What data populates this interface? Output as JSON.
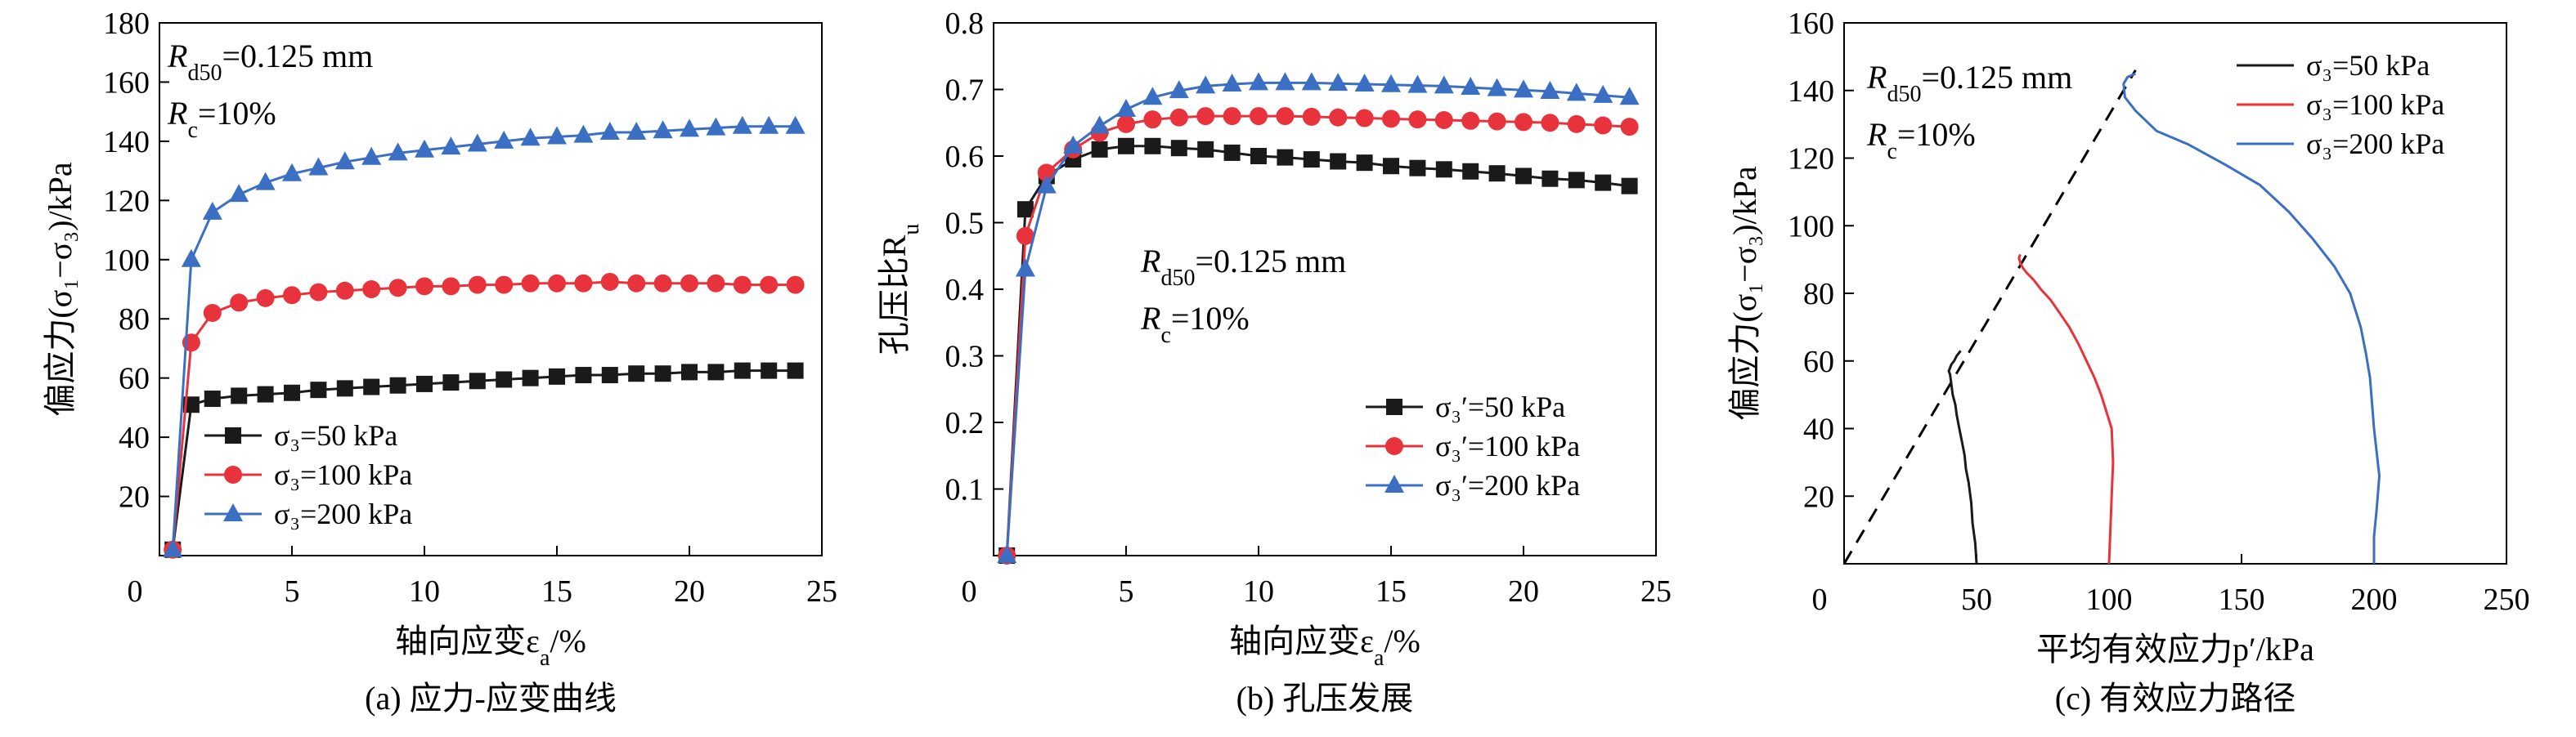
{
  "colors": {
    "black": "#1a1a1a",
    "red": "#e8323c",
    "blue": "#3b6fc4"
  },
  "chart_data": [
    {
      "type": "line",
      "id": "a",
      "caption": "(a) 应力-应变曲线",
      "xlabel": "轴向应变ε",
      "xlabel_sub": "a",
      "xlabel_unit": "/%",
      "ylabel": "偏应力(σ₁−σ₃)/kPa",
      "xlim": [
        0,
        25
      ],
      "ylim": [
        0,
        180
      ],
      "xticks": [
        0,
        5,
        10,
        15,
        20,
        25
      ],
      "yticks": [
        20,
        40,
        60,
        80,
        100,
        120,
        140,
        160,
        180
      ],
      "annotation": [
        "R",
        "d50",
        "=0.125 mm",
        "R",
        "c",
        "=10%"
      ],
      "legend_position": "lower-left",
      "series": [
        {
          "name": "σ₃=50 kPa",
          "color": "#1a1a1a",
          "marker": "square",
          "x": [
            0.5,
            1.2,
            2,
            3,
            4,
            5,
            6,
            7,
            8,
            9,
            10,
            11,
            12,
            13,
            14,
            15,
            16,
            17,
            18,
            19,
            20,
            21,
            22,
            23,
            24
          ],
          "y": [
            2,
            51,
            53,
            54,
            54.5,
            55,
            56,
            56.5,
            57,
            57.5,
            58,
            58.5,
            59,
            59.5,
            60,
            60.5,
            61,
            61,
            61.5,
            61.5,
            62,
            62,
            62.5,
            62.5,
            62.5
          ]
        },
        {
          "name": "σ₃=100 kPa",
          "color": "#e8323c",
          "marker": "circle",
          "x": [
            0.5,
            1.2,
            2,
            3,
            4,
            5,
            6,
            7,
            8,
            9,
            10,
            11,
            12,
            13,
            14,
            15,
            16,
            17,
            18,
            19,
            20,
            21,
            22,
            23,
            24
          ],
          "y": [
            2,
            72,
            82,
            85.5,
            87,
            88,
            89,
            89.5,
            90,
            90.5,
            91,
            91,
            91.5,
            91.5,
            92,
            92,
            92,
            92.5,
            92,
            92,
            92,
            92,
            91.5,
            91.5,
            91.5
          ]
        },
        {
          "name": "σ₃=200 kPa",
          "color": "#3b6fc4",
          "marker": "triangle",
          "x": [
            0.5,
            1.2,
            2,
            3,
            4,
            5,
            6,
            7,
            8,
            9,
            10,
            11,
            12,
            13,
            14,
            15,
            16,
            17,
            18,
            19,
            20,
            21,
            22,
            23,
            24
          ],
          "y": [
            2,
            100,
            116,
            122,
            126,
            129,
            131,
            133,
            134.5,
            136,
            137,
            138,
            139,
            140,
            141,
            141.5,
            142,
            143,
            143,
            143.5,
            144,
            144.5,
            145,
            145,
            145
          ]
        }
      ]
    },
    {
      "type": "line",
      "id": "b",
      "caption": "(b) 孔压发展",
      "xlabel": "轴向应变ε",
      "xlabel_sub": "a",
      "xlabel_unit": "/%",
      "ylabel": "孔压比R",
      "ylabel_sub": "u",
      "xlim": [
        0,
        25
      ],
      "ylim": [
        0,
        0.8
      ],
      "xticks": [
        0,
        5,
        10,
        15,
        20,
        25
      ],
      "yticks": [
        0.1,
        0.2,
        0.3,
        0.4,
        0.5,
        0.6,
        0.7,
        0.8
      ],
      "annotation": [
        "R",
        "d50",
        "=0.125 mm",
        "R",
        "c",
        "=10%"
      ],
      "legend_position": "lower-right",
      "series": [
        {
          "name": "σ₃′=50 kPa",
          "color": "#1a1a1a",
          "marker": "square",
          "x": [
            0.5,
            1.2,
            2,
            3,
            4,
            5,
            6,
            7,
            8,
            9,
            10,
            11,
            12,
            13,
            14,
            15,
            16,
            17,
            18,
            19,
            20,
            21,
            22,
            23,
            24
          ],
          "y": [
            0,
            0.52,
            0.57,
            0.595,
            0.61,
            0.615,
            0.615,
            0.612,
            0.61,
            0.605,
            0.6,
            0.598,
            0.595,
            0.592,
            0.59,
            0.585,
            0.582,
            0.58,
            0.577,
            0.574,
            0.57,
            0.566,
            0.564,
            0.56,
            0.555
          ]
        },
        {
          "name": "σ₃′=100 kPa",
          "color": "#e8323c",
          "marker": "circle",
          "x": [
            0.5,
            1.2,
            2,
            3,
            4,
            5,
            6,
            7,
            8,
            9,
            10,
            11,
            12,
            13,
            14,
            15,
            16,
            17,
            18,
            19,
            20,
            21,
            22,
            23,
            24
          ],
          "y": [
            0,
            0.48,
            0.575,
            0.61,
            0.635,
            0.648,
            0.655,
            0.658,
            0.66,
            0.66,
            0.66,
            0.66,
            0.659,
            0.658,
            0.657,
            0.656,
            0.655,
            0.654,
            0.653,
            0.652,
            0.651,
            0.65,
            0.648,
            0.646,
            0.644
          ]
        },
        {
          "name": "σ₃′=200 kPa",
          "color": "#3b6fc4",
          "marker": "triangle",
          "x": [
            0.5,
            1.2,
            2,
            3,
            4,
            5,
            6,
            7,
            8,
            9,
            10,
            11,
            12,
            13,
            14,
            15,
            16,
            17,
            18,
            19,
            20,
            21,
            22,
            23,
            24
          ],
          "y": [
            0,
            0.43,
            0.555,
            0.615,
            0.645,
            0.67,
            0.688,
            0.698,
            0.705,
            0.708,
            0.71,
            0.71,
            0.71,
            0.709,
            0.708,
            0.707,
            0.706,
            0.705,
            0.703,
            0.701,
            0.699,
            0.697,
            0.694,
            0.691,
            0.688
          ]
        }
      ]
    },
    {
      "type": "line",
      "id": "c",
      "caption": "(c) 有效应力路径",
      "xlabel": "平均有效应力p′/kPa",
      "ylabel": "偏应力(σ₁−σ₃)/kPa",
      "xlim": [
        0,
        250
      ],
      "ylim": [
        0,
        160
      ],
      "xticks": [
        0,
        50,
        100,
        150,
        200,
        250
      ],
      "yticks": [
        20,
        40,
        60,
        80,
        100,
        120,
        140,
        160
      ],
      "annotation": [
        "R",
        "d50",
        "=0.125 mm",
        "R",
        "c",
        "=10%"
      ],
      "legend_position": "top-right",
      "dashed_line": {
        "x": [
          0,
          110
        ],
        "y": [
          0,
          146
        ]
      },
      "series": [
        {
          "name": "σ₃=50 kPa",
          "color": "#1a1a1a",
          "marker": "none",
          "x": [
            50,
            49.5,
            48.5,
            48,
            47,
            46,
            45.5,
            44.5,
            43.5,
            42.5,
            42,
            41,
            40.5,
            40,
            39.5,
            40.5,
            41.5,
            42.5,
            43.5,
            44
          ],
          "y": [
            0,
            6,
            12,
            18,
            24,
            28,
            32,
            36,
            40,
            44,
            47,
            50,
            53,
            56,
            57,
            59,
            60,
            61.5,
            62.5,
            63
          ]
        },
        {
          "name": "σ₃=100 kPa",
          "color": "#e8323c",
          "marker": "none",
          "x": [
            100,
            100.5,
            101,
            101.5,
            101,
            99,
            97,
            94.5,
            91.5,
            88.5,
            85,
            81.5,
            78,
            74.5,
            71.5,
            69,
            67.5,
            66.5,
            66,
            66.5
          ],
          "y": [
            0,
            10,
            20,
            30,
            40,
            45,
            50,
            55,
            60,
            65,
            70,
            74,
            78,
            81,
            84,
            86,
            87.5,
            89,
            90.5,
            91.5
          ]
        },
        {
          "name": "σ₃=200 kPa",
          "color": "#3b6fc4",
          "marker": "none",
          "x": [
            200,
            200,
            201,
            202,
            200,
            198.5,
            197,
            195,
            191,
            185,
            177,
            168,
            157,
            144,
            130,
            118,
            110,
            106,
            105.5,
            107,
            110
          ],
          "y": [
            0,
            8,
            16,
            26,
            40,
            55,
            62,
            70,
            80,
            88,
            96,
            104,
            112,
            118,
            124,
            128,
            134,
            138,
            142,
            144,
            145
          ]
        }
      ]
    }
  ]
}
